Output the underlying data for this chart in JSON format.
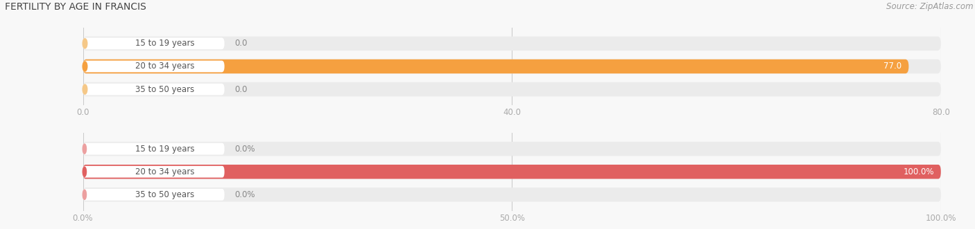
{
  "title": "FERTILITY BY AGE IN FRANCIS",
  "source": "Source: ZipAtlas.com",
  "top_chart": {
    "categories": [
      "15 to 19 years",
      "20 to 34 years",
      "35 to 50 years"
    ],
    "values": [
      0.0,
      77.0,
      0.0
    ],
    "xlim": [
      0,
      80.0
    ],
    "xticks": [
      0.0,
      40.0,
      80.0
    ],
    "xtick_labels": [
      "0.0",
      "40.0",
      "80.0"
    ],
    "bar_color": "#F5A040",
    "bar_bg_color": "#EBEBEB",
    "value_color": "#FFFFFF",
    "zero_value_color": "#888888",
    "tick_color": "#999999",
    "circle_color": "#F5A040",
    "zero_circle_color": "#F5C888"
  },
  "bottom_chart": {
    "categories": [
      "15 to 19 years",
      "20 to 34 years",
      "35 to 50 years"
    ],
    "values": [
      0.0,
      100.0,
      0.0
    ],
    "xlim": [
      0,
      100.0
    ],
    "xticks": [
      0.0,
      50.0,
      100.0
    ],
    "xtick_labels": [
      "0.0%",
      "50.0%",
      "100.0%"
    ],
    "bar_color": "#E06060",
    "bar_bg_color": "#EBEBEB",
    "value_color": "#FFFFFF",
    "zero_value_color": "#888888",
    "tick_color": "#999999",
    "circle_color": "#E06060",
    "zero_circle_color": "#ECA0A0"
  },
  "title_fontsize": 10,
  "source_fontsize": 8.5,
  "label_fontsize": 8.5,
  "value_fontsize": 8.5,
  "tick_fontsize": 8.5,
  "bg_color": "#F8F8F8"
}
